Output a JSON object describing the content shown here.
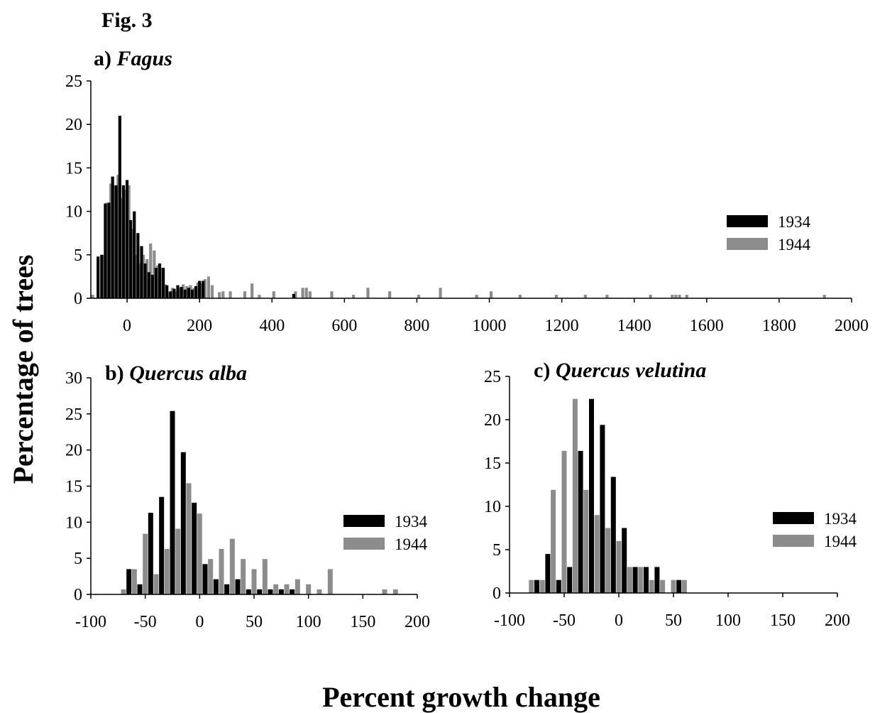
{
  "figure_label": "Fig. 3",
  "axis_titles": {
    "y": "Percentage of trees",
    "x": "Percent growth change"
  },
  "colors": {
    "s1934": "#000000",
    "s1944": "#8c8c8c",
    "axis": "#000000"
  },
  "chart_data": [
    {
      "type": "bar",
      "panel": "a",
      "title_prefix": "a) ",
      "title_italic": "Fagus",
      "xlim": [
        -100,
        2000
      ],
      "ylim": [
        0,
        25
      ],
      "x_ticks": [
        0,
        200,
        400,
        600,
        800,
        1000,
        1200,
        1400,
        1600,
        1800,
        2000
      ],
      "y_ticks": [
        0,
        5,
        10,
        15,
        20,
        25
      ],
      "bin_width": 10,
      "legend_position": "right",
      "series": [
        {
          "name": "1934",
          "x": [
            -80,
            -70,
            -60,
            -50,
            -40,
            -30,
            -20,
            -10,
            0,
            10,
            20,
            30,
            40,
            50,
            60,
            70,
            80,
            90,
            100,
            110,
            120,
            130,
            140,
            150,
            160,
            170,
            180,
            190,
            200,
            210,
            460
          ],
          "values": [
            4.8,
            5,
            10.9,
            11,
            14,
            13,
            21,
            13,
            13.6,
            9,
            10,
            7.5,
            6,
            4,
            3,
            2.7,
            3.5,
            4,
            3.5,
            1.5,
            0.8,
            1.1,
            1.5,
            1.3,
            1,
            1.2,
            1,
            1.4,
            2,
            2,
            0.5
          ]
        },
        {
          "name": "1944",
          "x": [
            -95,
            -65,
            -55,
            -45,
            -35,
            -25,
            -15,
            -5,
            5,
            15,
            25,
            35,
            45,
            55,
            65,
            75,
            85,
            95,
            105,
            115,
            125,
            135,
            145,
            155,
            165,
            175,
            185,
            195,
            205,
            215,
            225,
            235,
            255,
            265,
            285,
            325,
            345,
            365,
            405,
            465,
            485,
            495,
            505,
            565,
            625,
            665,
            725,
            805,
            865,
            965,
            1005,
            1085,
            1185,
            1265,
            1325,
            1445,
            1505,
            1515,
            1525,
            1545,
            1925
          ],
          "values": [
            0.4,
            5,
            11,
            13.2,
            13,
            14.2,
            11.5,
            12.5,
            13,
            8,
            5,
            4,
            5,
            4.5,
            6.3,
            5.5,
            3.8,
            3.5,
            1.6,
            0.7,
            1.2,
            0.8,
            1.2,
            1.6,
            1.4,
            1.5,
            1.2,
            1.8,
            1.7,
            2.2,
            2.5,
            1.5,
            0.7,
            0.8,
            0.8,
            0.8,
            1.7,
            0.4,
            0.8,
            0.8,
            1.2,
            1.2,
            0.8,
            0.8,
            0.4,
            1.2,
            0.8,
            0.4,
            1.2,
            0.4,
            0.8,
            0.4,
            0.4,
            0.4,
            0.4,
            0.4,
            0.4,
            0.4,
            0.4,
            0.4,
            0.4
          ]
        }
      ]
    },
    {
      "type": "bar",
      "panel": "b",
      "title_prefix": "b) ",
      "title_italic": "Quercus alba",
      "xlim": [
        -100,
        200
      ],
      "ylim": [
        0,
        30
      ],
      "x_ticks": [
        -100,
        -50,
        0,
        50,
        100,
        150,
        200
      ],
      "y_ticks": [
        0,
        5,
        10,
        15,
        20,
        25,
        30
      ],
      "bin_width": 10,
      "legend_position": "right",
      "series": [
        {
          "name": "1934",
          "x": [
            -65,
            -55,
            -45,
            -35,
            -25,
            -15,
            -5,
            5,
            15,
            25,
            35,
            45,
            55,
            65,
            75,
            85
          ],
          "values": [
            3.5,
            1.4,
            11.3,
            13.5,
            25.4,
            19.7,
            12.7,
            4.2,
            2.1,
            1.4,
            2.1,
            0.7,
            0.7,
            0.7,
            0.7,
            0.7
          ]
        },
        {
          "name": "1944",
          "x": [
            -70,
            -60,
            -50,
            -40,
            -30,
            -20,
            -10,
            0,
            10,
            20,
            30,
            40,
            50,
            60,
            70,
            80,
            90,
            100,
            110,
            120,
            170,
            180
          ],
          "values": [
            0.7,
            3.5,
            8.4,
            2.8,
            6.3,
            9.1,
            15.4,
            11.2,
            4.9,
            6.3,
            7.7,
            4.9,
            3.5,
            4.9,
            1.4,
            1.4,
            2.1,
            1.4,
            0.7,
            3.5,
            0.7,
            0.7
          ]
        }
      ]
    },
    {
      "type": "bar",
      "panel": "c",
      "title_prefix": "c) ",
      "title_italic": "Quercus velutina",
      "xlim": [
        -100,
        200
      ],
      "ylim": [
        0,
        25
      ],
      "x_ticks": [
        -100,
        -50,
        0,
        50,
        100,
        150,
        200
      ],
      "y_ticks": [
        0,
        5,
        10,
        15,
        20,
        25
      ],
      "bin_width": 10,
      "legend_position": "right",
      "series": [
        {
          "name": "1934",
          "x": [
            -75,
            -65,
            -55,
            -45,
            -35,
            -25,
            -15,
            -5,
            5,
            15,
            25,
            35,
            55
          ],
          "values": [
            1.5,
            4.5,
            1.5,
            3,
            16.4,
            22.4,
            19.4,
            13.4,
            7.5,
            3,
            3,
            3,
            1.5
          ]
        },
        {
          "name": "1944",
          "x": [
            -80,
            -70,
            -60,
            -50,
            -40,
            -30,
            -20,
            -10,
            0,
            10,
            20,
            30,
            40,
            50,
            60
          ],
          "values": [
            1.5,
            1.5,
            11.9,
            16.4,
            22.4,
            11.9,
            9,
            7.5,
            6,
            3,
            3,
            1.5,
            1.5,
            1.5,
            1.5
          ]
        }
      ]
    }
  ]
}
